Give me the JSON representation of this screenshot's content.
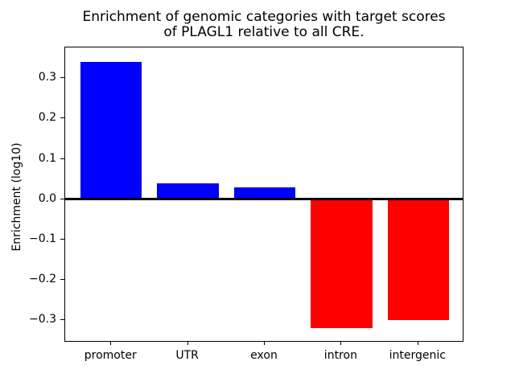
{
  "chart_data": {
    "type": "bar",
    "title": "Enrichment of genomic categories with target scores\nof PLAGL1 relative to all CRE.",
    "xlabel": "",
    "ylabel": "Enrichment (log10)",
    "categories": [
      "promoter",
      "UTR",
      "exon",
      "intron",
      "intergenic"
    ],
    "values": [
      0.34,
      0.04,
      0.03,
      -0.32,
      -0.3
    ],
    "bar_colors": [
      "#0000ff",
      "#0000ff",
      "#0000ff",
      "#ff0000",
      "#ff0000"
    ],
    "positive_color": "#0000ff",
    "negative_color": "#ff0000",
    "ylim": [
      -0.355,
      0.376
    ],
    "yticks": [
      0.3,
      0.2,
      0.1,
      0.0,
      -0.1,
      -0.2,
      -0.3
    ],
    "ytick_labels": [
      "0.3",
      "0.2",
      "0.1",
      "0.0",
      "−0.1",
      "−0.2",
      "−0.3"
    ],
    "grid": false,
    "legend": null,
    "zero_line": true,
    "background_color": "#ffffff",
    "axis_color": "#000000"
  }
}
